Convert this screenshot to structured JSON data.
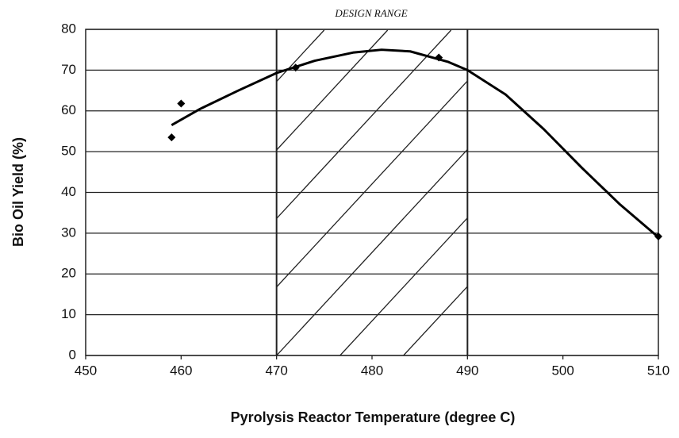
{
  "chart_data": {
    "type": "scatter",
    "xlabel": "Pyrolysis Reactor Temperature (degree C)",
    "ylabel": "Bio Oil Yield (%)",
    "annotation": "DESIGN RANGE",
    "design_range": [
      470,
      490
    ],
    "xlim": [
      450,
      510
    ],
    "ylim": [
      0,
      80
    ],
    "xticks": [
      450,
      460,
      470,
      480,
      490,
      500,
      510
    ],
    "yticks": [
      0,
      10,
      20,
      30,
      40,
      50,
      60,
      70,
      80
    ],
    "grid": true,
    "series": [
      {
        "style": "markers",
        "color": "#000000",
        "x": [
          459,
          460,
          472,
          487,
          510
        ],
        "values": [
          53.5,
          61.8,
          70.6,
          73.1,
          29.2
        ]
      },
      {
        "style": "line",
        "color": "#000000",
        "x": [
          459,
          462,
          466,
          470,
          474,
          478,
          481,
          484,
          488,
          490,
          494,
          498,
          502,
          506,
          510
        ],
        "values": [
          56.5,
          60.5,
          65,
          69.3,
          72.3,
          74.3,
          75,
          74.6,
          72,
          70,
          64,
          55.5,
          46,
          37,
          29
        ]
      }
    ]
  }
}
